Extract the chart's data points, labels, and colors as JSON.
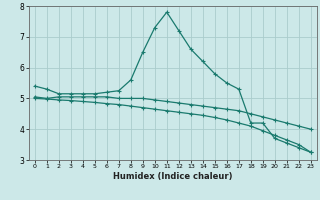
{
  "xlabel": "Humidex (Indice chaleur)",
  "bg_color": "#cce8e8",
  "grid_color": "#aacccc",
  "line_color": "#1a7a6e",
  "xlim": [
    -0.5,
    23.5
  ],
  "ylim": [
    3,
    8
  ],
  "xticks": [
    0,
    1,
    2,
    3,
    4,
    5,
    6,
    7,
    8,
    9,
    10,
    11,
    12,
    13,
    14,
    15,
    16,
    17,
    18,
    19,
    20,
    21,
    22,
    23
  ],
  "yticks": [
    3,
    4,
    5,
    6,
    7,
    8
  ],
  "line1_x": [
    0,
    1,
    2,
    3,
    4,
    5,
    6,
    7,
    8,
    9,
    10,
    11,
    12,
    13,
    14,
    15,
    16,
    17,
    18,
    19,
    20,
    21,
    22,
    23
  ],
  "line1_y": [
    5.4,
    5.3,
    5.15,
    5.15,
    5.15,
    5.15,
    5.2,
    5.25,
    5.6,
    6.5,
    7.3,
    7.8,
    7.2,
    6.6,
    6.2,
    5.8,
    5.5,
    5.3,
    4.2,
    4.2,
    3.7,
    3.55,
    3.4,
    3.25
  ],
  "line2_x": [
    0,
    1,
    2,
    3,
    4,
    5,
    6,
    7,
    8,
    9,
    10,
    11,
    12,
    13,
    14,
    15,
    16,
    17,
    18,
    19,
    20,
    21,
    22,
    23
  ],
  "line2_y": [
    5.05,
    5.0,
    5.05,
    5.05,
    5.05,
    5.05,
    5.05,
    5.0,
    5.0,
    5.0,
    4.95,
    4.9,
    4.85,
    4.8,
    4.75,
    4.7,
    4.65,
    4.6,
    4.5,
    4.4,
    4.3,
    4.2,
    4.1,
    4.0
  ],
  "line3_x": [
    0,
    1,
    2,
    3,
    4,
    5,
    6,
    7,
    8,
    9,
    10,
    11,
    12,
    13,
    14,
    15,
    16,
    17,
    18,
    19,
    20,
    21,
    22,
    23
  ],
  "line3_y": [
    5.0,
    4.98,
    4.95,
    4.93,
    4.9,
    4.87,
    4.83,
    4.8,
    4.75,
    4.7,
    4.65,
    4.6,
    4.55,
    4.5,
    4.45,
    4.38,
    4.3,
    4.2,
    4.1,
    3.95,
    3.8,
    3.65,
    3.5,
    3.25
  ]
}
